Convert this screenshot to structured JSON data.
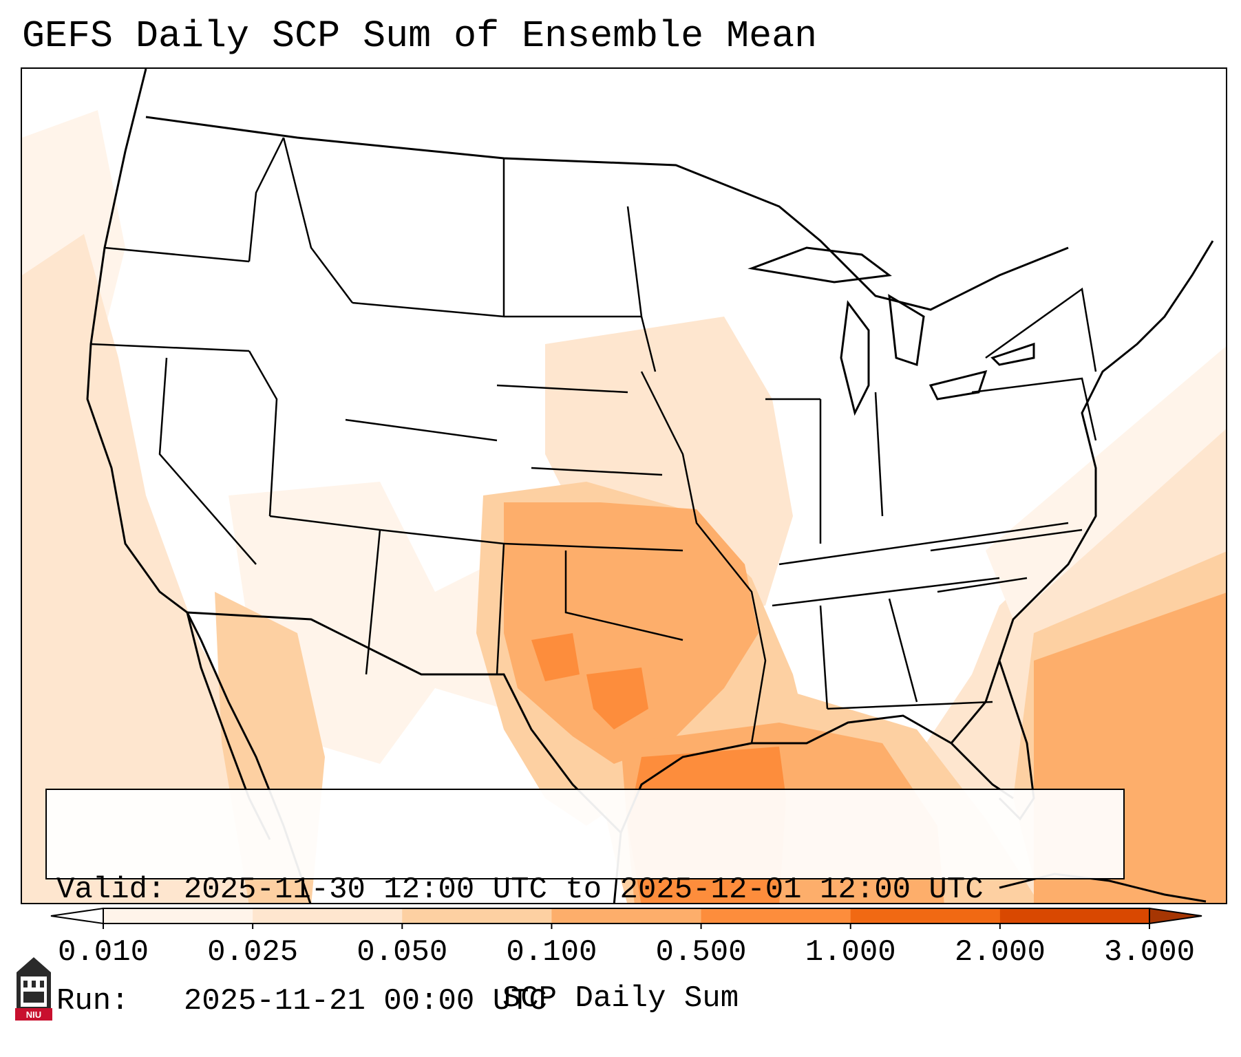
{
  "title": "GEFS Daily SCP Sum of Ensemble Mean",
  "info": {
    "valid_line": "Valid: 2025-11-30 12:00 UTC to 2025-12-01 12:00 UTC",
    "run_line": "Run:   2025-11-21 00:00 UTC"
  },
  "colorbar": {
    "label": "SCP Daily Sum",
    "ticks": [
      "0.010",
      "0.025",
      "0.050",
      "0.100",
      "0.500",
      "1.000",
      "2.000",
      "3.000"
    ],
    "colors": [
      "#fff4ea",
      "#fee6cf",
      "#fdd0a2",
      "#fdae6b",
      "#fd8d3c",
      "#f16913",
      "#d94801"
    ],
    "under_color": "#ffffff",
    "over_color": "#a63603"
  },
  "logo": {
    "name": "niu-logo-icon",
    "text": "NIU"
  },
  "map": {
    "region": "CONUS",
    "max_region": "Gulf of Mexico / Texas",
    "levels_shown": [
      "0.010",
      "0.025",
      "0.050",
      "0.100",
      "0.500"
    ]
  }
}
